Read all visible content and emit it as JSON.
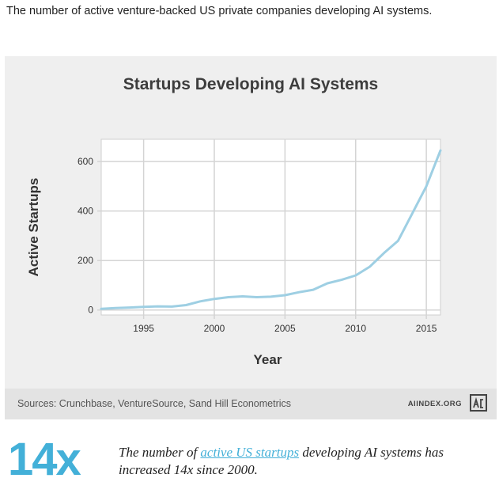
{
  "caption": "The number of active venture-backed US private companies developing AI systems.",
  "chart_data": {
    "type": "line",
    "title": "Startups Developing AI Systems",
    "xlabel": "Year",
    "ylabel": "Active Startups",
    "xlim": [
      1992,
      2016
    ],
    "ylim": [
      -20,
      690
    ],
    "xticks": [
      1995,
      2000,
      2005,
      2010,
      2015
    ],
    "yticks": [
      0,
      200,
      400,
      600
    ],
    "grid": true,
    "series": [
      {
        "color": "#9ecfe3",
        "x": [
          1992,
          1993,
          1994,
          1995,
          1996,
          1997,
          1998,
          1999,
          2000,
          2001,
          2002,
          2003,
          2004,
          2005,
          2006,
          2007,
          2008,
          2009,
          2010,
          2011,
          2012,
          2013,
          2014,
          2015,
          2016
        ],
        "y": [
          5,
          8,
          10,
          13,
          15,
          14,
          20,
          35,
          45,
          52,
          55,
          52,
          54,
          60,
          72,
          82,
          108,
          122,
          140,
          175,
          230,
          280,
          390,
          500,
          645
        ]
      }
    ]
  },
  "footer": {
    "sources": "Sources: Crunchbase, VentureSource, Sand Hill Econometrics",
    "brand": "AIINDEX.ORG"
  },
  "stat": {
    "value": "14x",
    "text_before": "The number of ",
    "link_text": "active US startups",
    "text_after": " developing AI systems has increased 14x since 2000."
  },
  "colors": {
    "accent": "#43b0d8",
    "line": "#9ecfe3"
  }
}
